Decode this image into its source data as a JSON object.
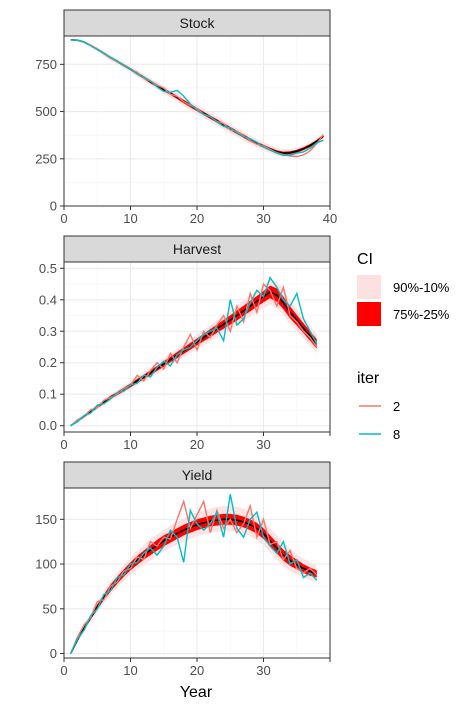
{
  "chart_data": [
    {
      "type": "line",
      "panel": "Stock",
      "ylim": [
        0,
        900
      ],
      "yticks": [
        0,
        250,
        500,
        750
      ],
      "xlim": [
        0,
        40
      ],
      "xticks": [
        0,
        10,
        20,
        30,
        40
      ],
      "x_labels": [
        "0",
        "10",
        "20",
        "30",
        "40"
      ],
      "y_labels": [
        "0",
        "250",
        "500",
        "750"
      ],
      "x": [
        1,
        2,
        3,
        4,
        5,
        6,
        7,
        8,
        9,
        10,
        11,
        12,
        13,
        14,
        15,
        16,
        17,
        18,
        19,
        20,
        21,
        22,
        23,
        24,
        25,
        26,
        27,
        28,
        29,
        30,
        31,
        32,
        33,
        34,
        35,
        36,
        37,
        38,
        39
      ],
      "median": [
        880,
        878,
        868,
        850,
        830,
        808,
        785,
        765,
        745,
        724,
        702,
        680,
        658,
        637,
        616,
        596,
        575,
        553,
        532,
        511,
        490,
        470,
        450,
        430,
        410,
        390,
        370,
        350,
        332,
        316,
        301,
        287,
        280,
        282,
        290,
        303,
        320,
        342,
        370
      ],
      "band_90_10": {
        "upper": [
          882,
          880,
          872,
          856,
          838,
          818,
          797,
          778,
          759,
          739,
          718,
          697,
          676,
          656,
          636,
          616,
          596,
          575,
          555,
          534,
          513,
          493,
          473,
          453,
          433,
          413,
          392,
          372,
          353,
          337,
          322,
          308,
          300,
          300,
          307,
          320,
          337,
          358,
          385
        ],
        "lower": [
          878,
          875,
          863,
          843,
          821,
          797,
          772,
          751,
          730,
          708,
          685,
          662,
          639,
          617,
          595,
          575,
          553,
          530,
          508,
          487,
          466,
          446,
          426,
          406,
          386,
          366,
          347,
          328,
          310,
          294,
          279,
          266,
          260,
          262,
          270,
          284,
          302,
          325,
          352
        ]
      },
      "band_75_25": {
        "upper": [
          881,
          879,
          870,
          853,
          834,
          813,
          790,
          770,
          751,
          730,
          709,
          687,
          666,
          645,
          624,
          604,
          583,
          562,
          541,
          520,
          499,
          479,
          459,
          439,
          419,
          399,
          379,
          359,
          340,
          324,
          309,
          295,
          288,
          290,
          298,
          311,
          328,
          350,
          378
        ],
        "lower": [
          879,
          877,
          866,
          847,
          826,
          803,
          780,
          760,
          739,
          718,
          695,
          673,
          650,
          629,
          608,
          588,
          567,
          544,
          523,
          502,
          481,
          461,
          441,
          421,
          401,
          381,
          361,
          341,
          324,
          308,
          293,
          280,
          272,
          274,
          282,
          295,
          312,
          334,
          362
        ]
      },
      "series": [
        {
          "name": "2",
          "values": [
            880,
            878,
            866,
            852,
            832,
            806,
            782,
            764,
            746,
            724,
            708,
            676,
            660,
            640,
            624,
            592,
            580,
            552,
            532,
            516,
            486,
            472,
            448,
            436,
            402,
            396,
            372,
            346,
            326,
            318,
            300,
            282,
            272,
            264,
            262,
            270,
            292,
            330,
            378
          ]
        },
        {
          "name": "8",
          "values": [
            880,
            877,
            869,
            848,
            828,
            810,
            787,
            768,
            742,
            725,
            698,
            682,
            662,
            630,
            606,
            602,
            612,
            582,
            540,
            508,
            484,
            474,
            444,
            422,
            414,
            388,
            368,
            356,
            338,
            312,
            296,
            280,
            268,
            270,
            280,
            286,
            306,
            334,
            348
          ]
        }
      ]
    },
    {
      "type": "line",
      "panel": "Harvest",
      "ylim": [
        -0.02,
        0.52
      ],
      "yticks": [
        0.0,
        0.1,
        0.2,
        0.3,
        0.4,
        0.5
      ],
      "xlim": [
        0,
        40
      ],
      "xticks": [
        0,
        10,
        20,
        30,
        40
      ],
      "x_labels": [
        "0",
        "10",
        "20",
        "30"
      ],
      "y_labels": [
        "0.0",
        "0.1",
        "0.2",
        "0.3",
        "0.4",
        "0.5"
      ],
      "x": [
        1,
        2,
        3,
        4,
        5,
        6,
        7,
        8,
        9,
        10,
        11,
        12,
        13,
        14,
        15,
        16,
        17,
        18,
        19,
        20,
        21,
        22,
        23,
        24,
        25,
        26,
        27,
        28,
        29,
        30,
        31,
        32,
        33,
        34,
        35,
        36,
        37,
        38
      ],
      "median": [
        0.0,
        0.015,
        0.03,
        0.045,
        0.06,
        0.075,
        0.09,
        0.102,
        0.115,
        0.128,
        0.142,
        0.155,
        0.168,
        0.182,
        0.196,
        0.21,
        0.224,
        0.238,
        0.252,
        0.266,
        0.28,
        0.294,
        0.308,
        0.322,
        0.336,
        0.35,
        0.365,
        0.38,
        0.395,
        0.41,
        0.425,
        0.415,
        0.39,
        0.36,
        0.335,
        0.31,
        0.285,
        0.26
      ],
      "band_90_10": {
        "upper": [
          0.002,
          0.02,
          0.037,
          0.053,
          0.069,
          0.085,
          0.1,
          0.113,
          0.127,
          0.141,
          0.156,
          0.17,
          0.184,
          0.199,
          0.214,
          0.229,
          0.244,
          0.259,
          0.274,
          0.289,
          0.304,
          0.32,
          0.335,
          0.35,
          0.366,
          0.382,
          0.398,
          0.414,
          0.43,
          0.447,
          0.465,
          0.457,
          0.43,
          0.398,
          0.37,
          0.343,
          0.316,
          0.29
        ],
        "lower": [
          0.0,
          0.01,
          0.023,
          0.037,
          0.051,
          0.065,
          0.08,
          0.091,
          0.103,
          0.115,
          0.128,
          0.14,
          0.152,
          0.165,
          0.178,
          0.191,
          0.204,
          0.217,
          0.23,
          0.243,
          0.256,
          0.268,
          0.281,
          0.294,
          0.306,
          0.318,
          0.332,
          0.346,
          0.36,
          0.373,
          0.385,
          0.373,
          0.35,
          0.322,
          0.3,
          0.277,
          0.254,
          0.23
        ]
      },
      "band_75_25": {
        "upper": [
          0.001,
          0.017,
          0.033,
          0.049,
          0.064,
          0.08,
          0.095,
          0.107,
          0.121,
          0.134,
          0.149,
          0.162,
          0.176,
          0.19,
          0.205,
          0.219,
          0.234,
          0.248,
          0.263,
          0.277,
          0.292,
          0.307,
          0.321,
          0.336,
          0.351,
          0.366,
          0.381,
          0.397,
          0.412,
          0.428,
          0.445,
          0.436,
          0.41,
          0.379,
          0.352,
          0.326,
          0.3,
          0.275
        ],
        "lower": [
          0.0,
          0.013,
          0.027,
          0.041,
          0.056,
          0.07,
          0.085,
          0.097,
          0.109,
          0.122,
          0.135,
          0.148,
          0.16,
          0.174,
          0.187,
          0.201,
          0.214,
          0.228,
          0.241,
          0.255,
          0.268,
          0.281,
          0.295,
          0.308,
          0.321,
          0.334,
          0.349,
          0.363,
          0.378,
          0.392,
          0.405,
          0.394,
          0.37,
          0.341,
          0.318,
          0.294,
          0.27,
          0.245
        ]
      },
      "series": [
        {
          "name": "2",
          "values": [
            0.0,
            0.018,
            0.03,
            0.05,
            0.058,
            0.08,
            0.09,
            0.1,
            0.118,
            0.128,
            0.16,
            0.142,
            0.175,
            0.2,
            0.18,
            0.23,
            0.2,
            0.25,
            0.29,
            0.24,
            0.3,
            0.28,
            0.32,
            0.35,
            0.3,
            0.38,
            0.33,
            0.42,
            0.36,
            0.45,
            0.43,
            0.38,
            0.44,
            0.35,
            0.33,
            0.3,
            0.28,
            0.25
          ]
        },
        {
          "name": "8",
          "values": [
            0.0,
            0.012,
            0.032,
            0.04,
            0.065,
            0.07,
            0.085,
            0.105,
            0.11,
            0.13,
            0.135,
            0.16,
            0.155,
            0.185,
            0.205,
            0.19,
            0.225,
            0.24,
            0.25,
            0.27,
            0.29,
            0.3,
            0.31,
            0.27,
            0.4,
            0.32,
            0.34,
            0.39,
            0.43,
            0.41,
            0.47,
            0.44,
            0.4,
            0.38,
            0.42,
            0.34,
            0.3,
            0.26
          ]
        }
      ]
    },
    {
      "type": "line",
      "panel": "Yield",
      "xlabel": "Year",
      "ylim": [
        -5,
        185
      ],
      "yticks": [
        0,
        50,
        100,
        150
      ],
      "xlim": [
        0,
        40
      ],
      "xticks": [
        0,
        10,
        20,
        30,
        40
      ],
      "x_labels": [
        "0",
        "10",
        "20",
        "30"
      ],
      "y_labels": [
        "0",
        "50",
        "100",
        "150"
      ],
      "x": [
        1,
        2,
        3,
        4,
        5,
        6,
        7,
        8,
        9,
        10,
        11,
        12,
        13,
        14,
        15,
        16,
        17,
        18,
        19,
        20,
        21,
        22,
        23,
        24,
        25,
        26,
        27,
        28,
        29,
        30,
        31,
        32,
        33,
        34,
        35,
        36,
        37,
        38
      ],
      "median": [
        0,
        15,
        28,
        40,
        52,
        63,
        73,
        82,
        90,
        97,
        104,
        110,
        116,
        121,
        126,
        130,
        134,
        138,
        141,
        144,
        146,
        148,
        149,
        150,
        150,
        149,
        147,
        144,
        140,
        134,
        126,
        118,
        110,
        104,
        99,
        95,
        92,
        89
      ],
      "band_90_10": {
        "upper": [
          0,
          18,
          32,
          45,
          58,
          70,
          81,
          90,
          99,
          107,
          115,
          121,
          128,
          133,
          138,
          143,
          147,
          151,
          155,
          158,
          160,
          162,
          164,
          165,
          165,
          164,
          162,
          158,
          154,
          148,
          140,
          132,
          124,
          117,
          111,
          106,
          102,
          98
        ],
        "lower": [
          0,
          12,
          24,
          35,
          46,
          56,
          65,
          74,
          81,
          88,
          94,
          99,
          104,
          109,
          114,
          118,
          122,
          125,
          128,
          131,
          133,
          135,
          136,
          137,
          137,
          136,
          134,
          131,
          127,
          121,
          113,
          105,
          97,
          92,
          88,
          85,
          82,
          80
        ]
      },
      "band_75_25": {
        "upper": [
          0,
          16,
          30,
          42,
          55,
          66,
          77,
          86,
          94,
          102,
          109,
          115,
          121,
          127,
          132,
          136,
          140,
          144,
          147,
          150,
          152,
          154,
          155,
          156,
          156,
          155,
          153,
          150,
          146,
          140,
          132,
          124,
          116,
          110,
          105,
          100,
          96,
          93
        ],
        "lower": [
          0,
          14,
          26,
          38,
          49,
          60,
          69,
          78,
          86,
          93,
          99,
          105,
          110,
          115,
          120,
          124,
          128,
          132,
          135,
          138,
          140,
          142,
          143,
          144,
          144,
          143,
          141,
          138,
          134,
          128,
          120,
          112,
          104,
          98,
          94,
          90,
          87,
          85
        ]
      },
      "series": [
        {
          "name": "2",
          "values": [
            0,
            18,
            32,
            40,
            58,
            60,
            75,
            80,
            92,
            95,
            108,
            105,
            125,
            120,
            130,
            128,
            150,
            170,
            140,
            155,
            170,
            135,
            160,
            140,
            150,
            135,
            145,
            165,
            130,
            150,
            122,
            125,
            105,
            115,
            95,
            90,
            95,
            88
          ]
        },
        {
          "name": "8",
          "values": [
            0,
            16,
            26,
            42,
            50,
            66,
            70,
            85,
            88,
            100,
            102,
            112,
            118,
            110,
            120,
            138,
            130,
            102,
            160,
            145,
            138,
            145,
            158,
            130,
            178,
            140,
            130,
            150,
            158,
            130,
            120,
            112,
            125,
            100,
            105,
            85,
            90,
            82
          ]
        }
      ]
    }
  ],
  "legend": {
    "ci_title": "CI",
    "ci_items": [
      {
        "label": "90%-10%",
        "color": "#fde0e0"
      },
      {
        "label": "75%-25%",
        "color": "#ff0000"
      }
    ],
    "iter_title": "iter",
    "iter_items": [
      {
        "label": "2",
        "color": "#f8766d"
      },
      {
        "label": "8",
        "color": "#00bfc4"
      }
    ]
  },
  "colors": {
    "panel_bg": "#ffffff",
    "grid_major": "#ebebeb",
    "grid_minor": "#f5f5f5",
    "strip_bg": "#d9d9d9",
    "band_outer": "#fde0e0",
    "band_inner": "#ff0000",
    "median": "#000000",
    "iter2": "#f8766d",
    "iter8": "#00bfc4"
  }
}
